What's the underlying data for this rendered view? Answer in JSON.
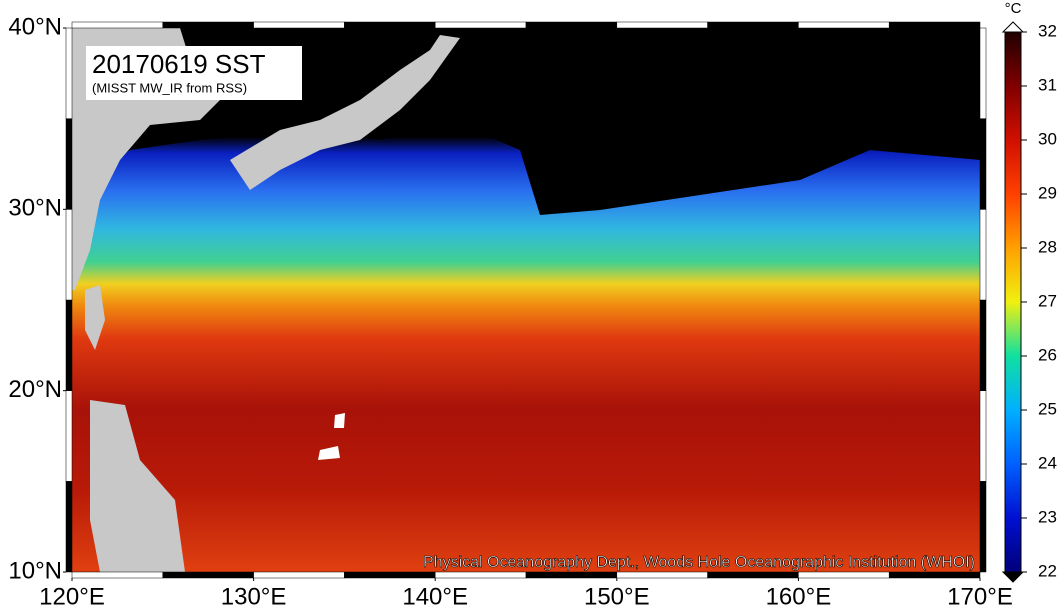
{
  "map": {
    "title": "20170619 SST",
    "subtitle": "(MISST MW_IR from RSS)",
    "credit": "Physical Oceanography Dept., Woods Hole Oceanographic Institution (WHOI)",
    "lonlim": [
      120,
      170
    ],
    "latlim": [
      10,
      40
    ],
    "lonticks": [
      {
        "value": 120,
        "label": "120°E"
      },
      {
        "value": 130,
        "label": "130°E"
      },
      {
        "value": 140,
        "label": "140°E"
      },
      {
        "value": 150,
        "label": "150°E"
      },
      {
        "value": 160,
        "label": "160°E"
      },
      {
        "value": 170,
        "label": "170°E"
      }
    ],
    "latticks": [
      {
        "value": 10,
        "label": "10°N"
      },
      {
        "value": 20,
        "label": "20°N"
      },
      {
        "value": 30,
        "label": "30°N"
      },
      {
        "value": 40,
        "label": "40°N"
      }
    ]
  },
  "colorbar": {
    "unit": "°C",
    "lim": [
      22,
      32
    ],
    "ticks": [
      22,
      23,
      24,
      25,
      26,
      27,
      28,
      29,
      30,
      31,
      32
    ]
  }
}
